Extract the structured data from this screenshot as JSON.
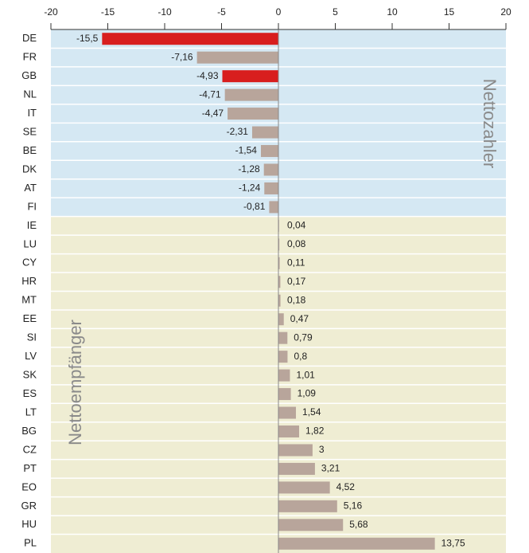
{
  "chart_data": {
    "type": "bar",
    "orientation": "horizontal",
    "categories": [
      "DE",
      "FR",
      "GB",
      "NL",
      "IT",
      "SE",
      "BE",
      "DK",
      "AT",
      "FI",
      "IE",
      "LU",
      "CY",
      "HR",
      "MT",
      "EE",
      "SI",
      "LV",
      "SK",
      "ES",
      "LT",
      "BG",
      "CZ",
      "PT",
      "EO",
      "GR",
      "HU",
      "PL"
    ],
    "values": [
      -15.5,
      -7.16,
      -4.93,
      -4.71,
      -4.47,
      -2.31,
      -1.54,
      -1.28,
      -1.24,
      -0.81,
      0.04,
      0.08,
      0.11,
      0.17,
      0.18,
      0.47,
      0.79,
      0.8,
      1.01,
      1.09,
      1.54,
      1.82,
      3,
      3.21,
      4.52,
      5.16,
      5.68,
      13.75
    ],
    "value_labels": [
      "-15,5",
      "-7,16",
      "-4,93",
      "-4,71",
      "-4,47",
      "-2,31",
      "-1,54",
      "-1,28",
      "-1,24",
      "-0,81",
      "0,04",
      "0,08",
      "0,11",
      "0,17",
      "0,18",
      "0,47",
      "0,79",
      "0,8",
      "1,01",
      "1,09",
      "1,54",
      "1,82",
      "3",
      "3,21",
      "4,52",
      "5,16",
      "5,68",
      "13,75"
    ],
    "colors": [
      "#d81e1e",
      "#b8a59b",
      "#d81e1e",
      "#b8a59b",
      "#b8a59b",
      "#b8a59b",
      "#b8a59b",
      "#b8a59b",
      "#b8a59b",
      "#b8a59b",
      "#b8a59b",
      "#b8a59b",
      "#b8a59b",
      "#b8a59b",
      "#b8a59b",
      "#b8a59b",
      "#b8a59b",
      "#b8a59b",
      "#b8a59b",
      "#b8a59b",
      "#b8a59b",
      "#b8a59b",
      "#b8a59b",
      "#b8a59b",
      "#b8a59b",
      "#b8a59b",
      "#b8a59b",
      "#b8a59b"
    ],
    "background_colors": {
      "negative": "#d5e8f3",
      "positive": "#efedd3"
    },
    "annotations": [
      "Nettozahler",
      "Nettoempfänger"
    ],
    "xlim": [
      -20,
      20
    ],
    "xticks": [
      -20,
      -15,
      -10,
      -5,
      0,
      5,
      10,
      15,
      20
    ]
  }
}
